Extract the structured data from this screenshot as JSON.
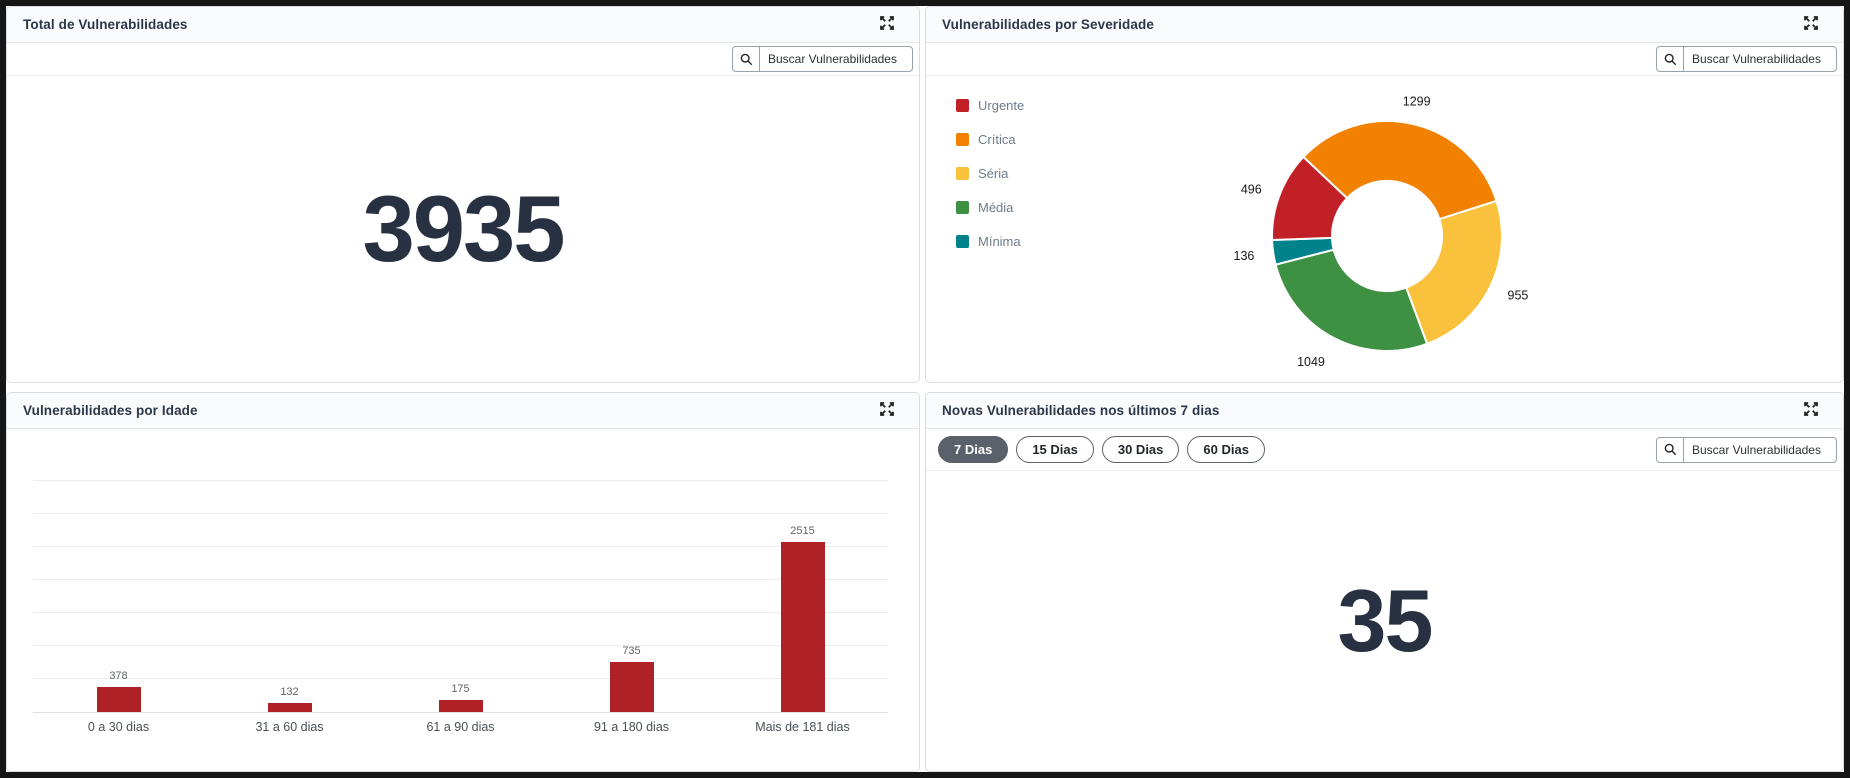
{
  "app": {
    "frame_color": "#161616",
    "background": "#ffffff"
  },
  "colors": {
    "title_text": "#2b3648",
    "big_number_text": "#273142",
    "legend_text": "#6e7b8a",
    "urgente_red": "#c02026",
    "critica_orange": "#f28100",
    "seria_yellow": "#f9c13c",
    "media_green": "#3e9142",
    "minima_teal": "#00828c",
    "bar_red": "#b02125",
    "selected_pill": "#5a616b"
  },
  "icons": {
    "expand": "expand-arrows-icon",
    "search": "magnifier-icon"
  },
  "panels": {
    "total": {
      "title": "Total de Vulnerabilidades",
      "search_placeholder": "Buscar Vulnerabilidades",
      "value": "3935"
    },
    "severity": {
      "title": "Vulnerabilidades por Severidade",
      "search_placeholder": "Buscar Vulnerabilidades"
    },
    "age": {
      "title": "Vulnerabilidades por Idade"
    },
    "new7days": {
      "title": "Novas Vulnerabilidades nos últimos 7 dias",
      "search_placeholder": "Buscar Vulnerabilidades",
      "value": "35",
      "filters": [
        {
          "label": "7 Dias",
          "selected": true
        },
        {
          "label": "15 Dias",
          "selected": false
        },
        {
          "label": "30 Dias",
          "selected": false
        },
        {
          "label": "60 Dias",
          "selected": false
        }
      ]
    }
  },
  "chart_data": [
    {
      "id": "severity-donut",
      "type": "pie",
      "donut": true,
      "title": "Vulnerabilidades por Severidade",
      "legend_position": "left",
      "legend_order": [
        "Urgente",
        "Crítica",
        "Séria",
        "Média",
        "Mínima"
      ],
      "slices_clockwise_from_top": [
        {
          "name": "Crítica",
          "value": 1299,
          "color": "#f28100"
        },
        {
          "name": "Séria",
          "value": 955,
          "color": "#f9c13c"
        },
        {
          "name": "Média",
          "value": 1049,
          "color": "#3e9142"
        },
        {
          "name": "Mínima",
          "value": 136,
          "color": "#00828c"
        },
        {
          "name": "Urgente",
          "value": 496,
          "color": "#c02026"
        }
      ],
      "start_angle_deg": -46.6,
      "total": 3935
    },
    {
      "id": "age-bars",
      "type": "bar",
      "title": "Vulnerabilidades por Idade",
      "categories": [
        "0 a 30 dias",
        "31 a 60 dias",
        "61 a 90 dias",
        "91 a 180 dias",
        "Mais de 181 dias"
      ],
      "values": [
        378,
        132,
        175,
        735,
        2515
      ],
      "bar_color": "#b02125",
      "grid": true,
      "value_labels_shown": true,
      "xlabel": "",
      "ylabel": "",
      "ylim": [
        0,
        2750
      ]
    }
  ]
}
